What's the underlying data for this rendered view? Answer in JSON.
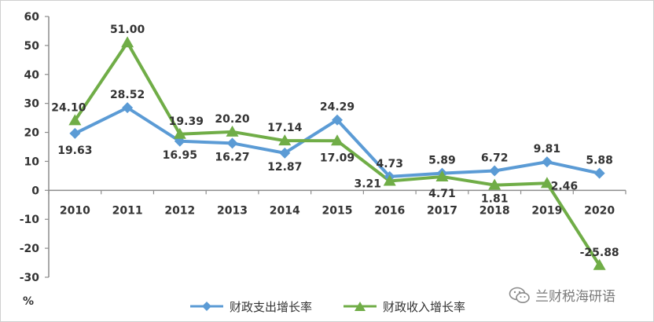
{
  "chart_data": {
    "type": "line",
    "title": "",
    "ylabel": "%",
    "xlabel": "",
    "ylim": [
      -30,
      60
    ],
    "yticks": [
      60,
      50,
      40,
      30,
      20,
      10,
      0,
      -10,
      -20,
      -30
    ],
    "categories": [
      "2010",
      "2011",
      "2012",
      "2013",
      "2014",
      "2015",
      "2016",
      "2017",
      "2018",
      "2019",
      "2020"
    ],
    "series": [
      {
        "name": "财政支出增长率",
        "color": "#5b9bd5",
        "marker": "diamond",
        "values": [
          19.63,
          28.52,
          16.95,
          16.27,
          12.87,
          24.29,
          4.73,
          5.89,
          6.72,
          9.81,
          5.88
        ],
        "labels": [
          "19.63",
          "28.52",
          "16.95",
          "16.27",
          "12.87",
          "24.29",
          "4.73",
          "5.89",
          "6.72",
          "9.81",
          "5.88"
        ]
      },
      {
        "name": "财政收入增长率",
        "color": "#70ad47",
        "marker": "triangle",
        "values": [
          24.1,
          51.0,
          19.39,
          20.2,
          17.14,
          17.09,
          3.21,
          4.71,
          1.81,
          2.46,
          -25.88
        ],
        "labels": [
          "24.10",
          "51.00",
          "19.39",
          "20.20",
          "17.14",
          "17.09",
          "3.21",
          "4.71",
          "1.81",
          "2.46",
          "-25.88"
        ]
      }
    ],
    "grid": false,
    "legend_position": "bottom"
  },
  "watermark": {
    "text": "兰财税海研语",
    "icon": "wechat-icon"
  }
}
